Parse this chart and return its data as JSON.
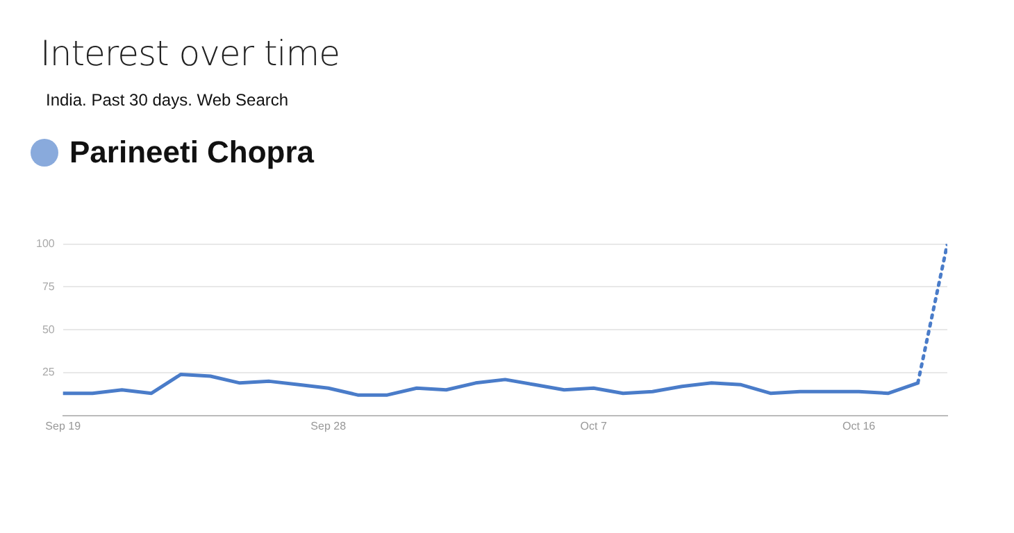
{
  "chart_data": {
    "type": "line",
    "title": "Interest over time",
    "subtitle": "India. Past 30 days. Web Search",
    "legend": "top left",
    "grid": "y",
    "marker": "none",
    "xlim": [
      "--09-19",
      "--10-19"
    ],
    "xticks": [
      {
        "value": "--09-19",
        "label": "Sep 19"
      },
      {
        "value": "--09-28",
        "label": "Sep 28"
      },
      {
        "value": "--10-07",
        "label": "Oct 7"
      },
      {
        "value": "--10-16",
        "label": "Oct 16"
      }
    ],
    "ylim": [
      0,
      100
    ],
    "yticks": [
      25,
      50,
      75,
      100
    ],
    "series": [
      {
        "name": "Parineeti Chopra",
        "color": "#4a7cc9",
        "line_style": "solid",
        "x": [
          "--09-19",
          "--09-20",
          "--09-21",
          "--09-22",
          "--09-23",
          "--09-24",
          "--09-25",
          "--09-26",
          "--09-27",
          "--09-28",
          "--09-29",
          "--09-30",
          "--10-01",
          "--10-02",
          "--10-03",
          "--10-04",
          "--10-05",
          "--10-06",
          "--10-07",
          "--10-08",
          "--10-09",
          "--10-10",
          "--10-11",
          "--10-12",
          "--10-13",
          "--10-14",
          "--10-15",
          "--10-16",
          "--10-17",
          "--10-18"
        ],
        "values": [
          13,
          13,
          15,
          13,
          24,
          23,
          19,
          20,
          18,
          16,
          12,
          12,
          16,
          15,
          19,
          21,
          18,
          15,
          16,
          13,
          14,
          17,
          19,
          18,
          13,
          14,
          14,
          14,
          13,
          19
        ]
      },
      {
        "color": "#4a7cc9",
        "line_style": "dotted",
        "x": [
          "--10-18",
          "--10-19"
        ],
        "values": [
          19,
          100
        ]
      }
    ]
  }
}
